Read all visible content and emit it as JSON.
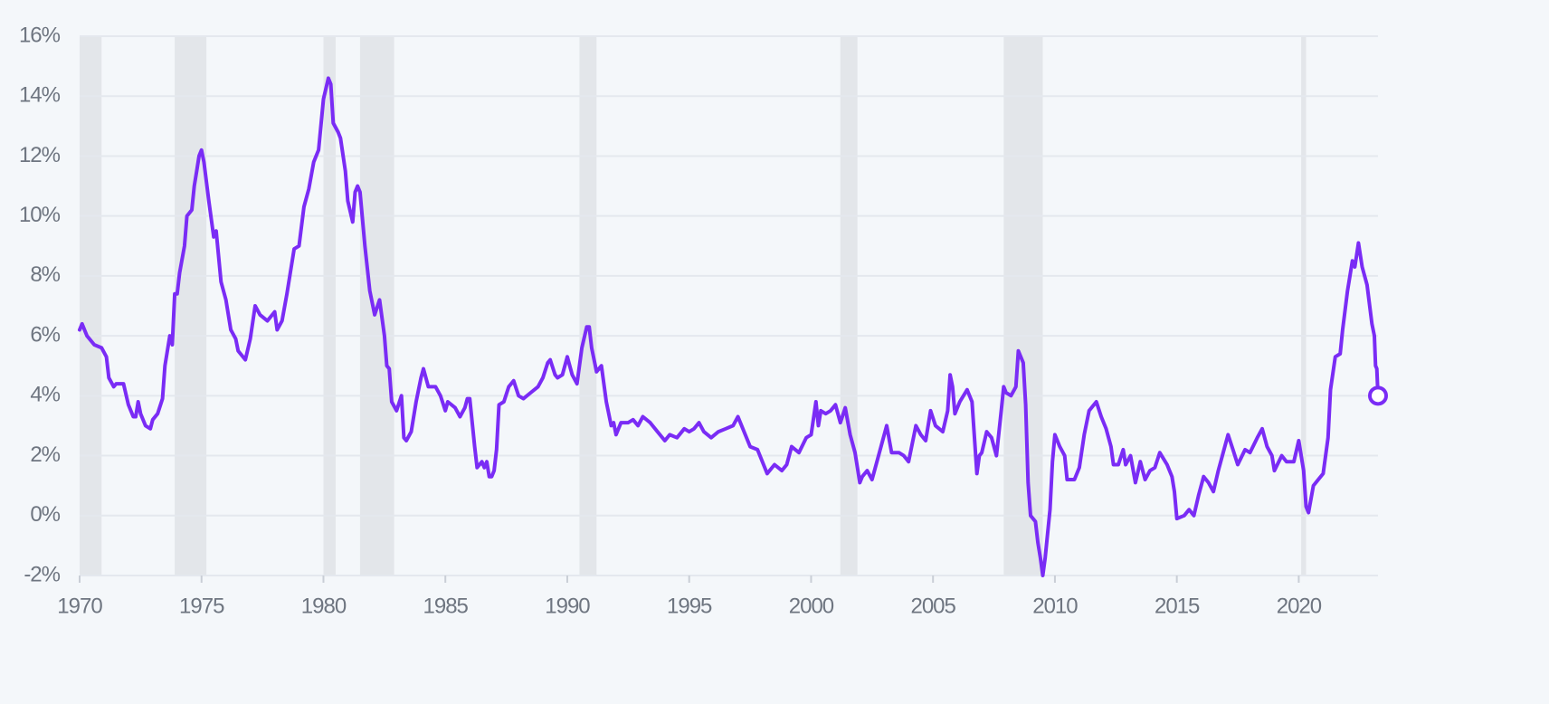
{
  "chart_data": {
    "type": "line",
    "color": "#7a2cf5",
    "recession_color": "#e3e6ea",
    "grid": true,
    "end_marker": true,
    "xlim": [
      1970,
      2023.25
    ],
    "ylim": [
      -2,
      16
    ],
    "xticks": [
      1970,
      1975,
      1980,
      1985,
      1990,
      1995,
      2000,
      2005,
      2010,
      2015,
      2020
    ],
    "yticks": [
      {
        "value": -2,
        "label": "-2%"
      },
      {
        "value": 0,
        "label": "0%"
      },
      {
        "value": 2,
        "label": "2%"
      },
      {
        "value": 4,
        "label": "4%"
      },
      {
        "value": 6,
        "label": "6%"
      },
      {
        "value": 8,
        "label": "8%"
      },
      {
        "value": 10,
        "label": "10%"
      },
      {
        "value": 12,
        "label": "12%"
      },
      {
        "value": 14,
        "label": "14%"
      },
      {
        "value": 16,
        "label": "16%"
      }
    ],
    "recessions": [
      [
        1970.0,
        1970.9
      ],
      [
        1973.9,
        1975.2
      ],
      [
        1980.0,
        1980.5
      ],
      [
        1981.5,
        1982.9
      ],
      [
        1990.5,
        1991.2
      ],
      [
        2001.2,
        2001.9
      ],
      [
        2007.9,
        2009.5
      ],
      [
        2020.1,
        2020.3
      ]
    ],
    "x": [
      1970.0,
      1970.1,
      1970.3,
      1970.6,
      1970.9,
      1971.1,
      1971.2,
      1971.4,
      1971.5,
      1971.8,
      1972.0,
      1972.2,
      1972.3,
      1972.4,
      1972.5,
      1972.7,
      1972.9,
      1973.0,
      1973.2,
      1973.4,
      1973.5,
      1973.7,
      1973.8,
      1973.9,
      1974.0,
      1974.1,
      1974.3,
      1974.4,
      1974.6,
      1974.7,
      1974.8,
      1974.9,
      1975.0,
      1975.1,
      1975.3,
      1975.5,
      1975.6,
      1975.8,
      1976.0,
      1976.2,
      1976.4,
      1976.5,
      1976.8,
      1977.0,
      1977.2,
      1977.4,
      1977.7,
      1977.8,
      1978.0,
      1978.1,
      1978.3,
      1978.5,
      1978.8,
      1979.0,
      1979.2,
      1979.4,
      1979.6,
      1979.8,
      1980.0,
      1980.2,
      1980.3,
      1980.4,
      1980.6,
      1980.7,
      1980.9,
      1981.0,
      1981.2,
      1981.3,
      1981.4,
      1981.5,
      1981.7,
      1981.9,
      1982.1,
      1982.3,
      1982.5,
      1982.6,
      1982.7,
      1982.8,
      1983.0,
      1983.2,
      1983.3,
      1983.4,
      1983.6,
      1983.8,
      1984.0,
      1984.1,
      1984.3,
      1984.6,
      1984.8,
      1985.0,
      1985.1,
      1985.4,
      1985.6,
      1985.8,
      1985.9,
      1986.0,
      1986.2,
      1986.3,
      1986.5,
      1986.6,
      1986.7,
      1986.8,
      1986.9,
      1987.0,
      1987.1,
      1987.2,
      1987.4,
      1987.6,
      1987.8,
      1988.0,
      1988.2,
      1988.5,
      1988.8,
      1989.0,
      1989.2,
      1989.3,
      1989.5,
      1989.6,
      1989.8,
      1990.0,
      1990.2,
      1990.4,
      1990.6,
      1990.8,
      1990.9,
      1991.0,
      1991.2,
      1991.4,
      1991.6,
      1991.8,
      1991.9,
      1992.0,
      1992.2,
      1992.5,
      1992.7,
      1992.9,
      1993.1,
      1993.4,
      1993.7,
      1994.0,
      1994.2,
      1994.5,
      1994.8,
      1995.0,
      1995.2,
      1995.4,
      1995.6,
      1995.9,
      1996.2,
      1996.5,
      1996.8,
      1997.0,
      1997.2,
      1997.5,
      1997.8,
      1998.0,
      1998.2,
      1998.5,
      1998.8,
      1999.0,
      1999.2,
      1999.5,
      1999.8,
      2000.0,
      2000.2,
      2000.3,
      2000.4,
      2000.6,
      2000.8,
      2001.0,
      2001.2,
      2001.4,
      2001.6,
      2001.8,
      2002.0,
      2002.1,
      2002.3,
      2002.5,
      2002.7,
      2002.9,
      2003.1,
      2003.3,
      2003.6,
      2003.8,
      2004.0,
      2004.3,
      2004.5,
      2004.7,
      2004.9,
      2005.1,
      2005.4,
      2005.6,
      2005.7,
      2005.8,
      2005.9,
      2006.1,
      2006.4,
      2006.6,
      2006.8,
      2006.9,
      2007.0,
      2007.2,
      2007.4,
      2007.6,
      2007.8,
      2007.9,
      2008.0,
      2008.2,
      2008.4,
      2008.5,
      2008.7,
      2008.8,
      2008.9,
      2009.0,
      2009.2,
      2009.3,
      2009.4,
      2009.5,
      2009.6,
      2009.8,
      2009.9,
      2010.0,
      2010.2,
      2010.4,
      2010.5,
      2010.8,
      2011.0,
      2011.2,
      2011.4,
      2011.7,
      2011.9,
      2012.1,
      2012.3,
      2012.4,
      2012.6,
      2012.8,
      2012.9,
      2013.1,
      2013.3,
      2013.5,
      2013.7,
      2013.9,
      2014.1,
      2014.3,
      2014.6,
      2014.8,
      2014.9,
      2015.0,
      2015.3,
      2015.5,
      2015.7,
      2015.9,
      2016.1,
      2016.3,
      2016.5,
      2016.7,
      2016.9,
      2017.1,
      2017.3,
      2017.5,
      2017.8,
      2018.0,
      2018.3,
      2018.5,
      2018.7,
      2018.9,
      2019.0,
      2019.3,
      2019.5,
      2019.8,
      2020.0,
      2020.2,
      2020.3,
      2020.4,
      2020.6,
      2020.8,
      2021.0,
      2021.2,
      2021.3,
      2021.5,
      2021.7,
      2021.8,
      2022.0,
      2022.2,
      2022.3,
      2022.45,
      2022.6,
      2022.8,
      2023.0,
      2023.1,
      2023.15,
      2023.2,
      2023.25
    ],
    "values": [
      6.2,
      6.4,
      6.0,
      5.7,
      5.6,
      5.3,
      4.6,
      4.3,
      4.4,
      4.4,
      3.7,
      3.3,
      3.3,
      3.8,
      3.4,
      3.0,
      2.9,
      3.2,
      3.4,
      3.9,
      5.0,
      6.0,
      5.7,
      7.4,
      7.4,
      8.1,
      9.0,
      10.0,
      10.2,
      11.0,
      11.5,
      12.0,
      12.2,
      11.8,
      10.5,
      9.3,
      9.5,
      7.8,
      7.2,
      6.2,
      5.9,
      5.5,
      5.2,
      5.9,
      7.0,
      6.7,
      6.5,
      6.6,
      6.8,
      6.2,
      6.5,
      7.4,
      8.9,
      9.0,
      10.3,
      10.9,
      11.8,
      12.2,
      13.9,
      14.6,
      14.4,
      13.1,
      12.8,
      12.6,
      11.5,
      10.5,
      9.8,
      10.8,
      11.0,
      10.8,
      9.0,
      7.5,
      6.7,
      7.2,
      6.0,
      5.0,
      4.9,
      3.8,
      3.5,
      4.0,
      2.6,
      2.5,
      2.8,
      3.8,
      4.6,
      4.9,
      4.3,
      4.3,
      4.0,
      3.5,
      3.8,
      3.6,
      3.3,
      3.6,
      3.9,
      3.9,
      2.3,
      1.6,
      1.8,
      1.6,
      1.8,
      1.3,
      1.3,
      1.5,
      2.2,
      3.7,
      3.8,
      4.3,
      4.5,
      4.0,
      3.9,
      4.1,
      4.3,
      4.6,
      5.1,
      5.2,
      4.7,
      4.6,
      4.7,
      5.3,
      4.7,
      4.4,
      5.6,
      6.3,
      6.3,
      5.6,
      4.8,
      5.0,
      3.8,
      3.0,
      3.1,
      2.7,
      3.1,
      3.1,
      3.2,
      3.0,
      3.3,
      3.1,
      2.8,
      2.5,
      2.7,
      2.6,
      2.9,
      2.8,
      2.9,
      3.1,
      2.8,
      2.6,
      2.8,
      2.9,
      3.0,
      3.3,
      2.9,
      2.3,
      2.2,
      1.8,
      1.4,
      1.7,
      1.5,
      1.7,
      2.3,
      2.1,
      2.6,
      2.7,
      3.8,
      3.0,
      3.5,
      3.4,
      3.5,
      3.7,
      3.1,
      3.6,
      2.7,
      2.1,
      1.1,
      1.3,
      1.5,
      1.2,
      1.8,
      2.4,
      3.0,
      2.1,
      2.1,
      2.0,
      1.8,
      3.0,
      2.7,
      2.5,
      3.5,
      3.0,
      2.8,
      3.5,
      4.7,
      4.3,
      3.4,
      3.8,
      4.2,
      3.8,
      1.4,
      2.0,
      2.1,
      2.8,
      2.6,
      2.0,
      3.5,
      4.3,
      4.1,
      4.0,
      4.3,
      5.5,
      5.1,
      3.7,
      1.1,
      0.0,
      -0.2,
      -0.9,
      -1.4,
      -2.0,
      -1.4,
      0.2,
      1.8,
      2.7,
      2.3,
      2.0,
      1.2,
      1.2,
      1.6,
      2.7,
      3.5,
      3.8,
      3.3,
      2.9,
      2.3,
      1.7,
      1.7,
      2.2,
      1.7,
      2.0,
      1.1,
      1.8,
      1.2,
      1.5,
      1.6,
      2.1,
      1.7,
      1.3,
      0.8,
      -0.1,
      0.0,
      0.2,
      0.0,
      0.7,
      1.3,
      1.1,
      0.8,
      1.5,
      2.1,
      2.7,
      2.2,
      1.7,
      2.2,
      2.1,
      2.6,
      2.9,
      2.3,
      2.0,
      1.5,
      2.0,
      1.8,
      1.8,
      2.5,
      1.5,
      0.3,
      0.1,
      1.0,
      1.2,
      1.4,
      2.6,
      4.2,
      5.3,
      5.4,
      6.2,
      7.5,
      8.5,
      8.3,
      9.1,
      8.3,
      7.7,
      6.4,
      6.0,
      5.0,
      4.9,
      4.0
    ]
  }
}
